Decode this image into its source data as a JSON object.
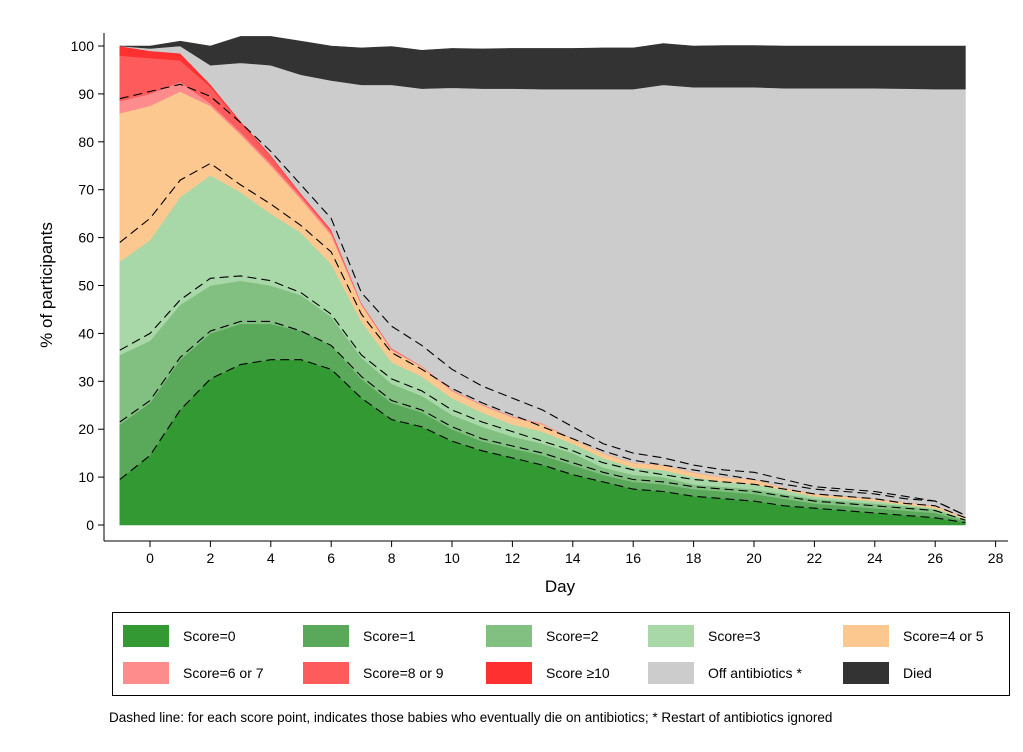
{
  "chart_data": {
    "type": "area",
    "stacked": true,
    "xlabel": "Day",
    "ylabel": "% of participants",
    "xlim": [
      -2,
      28
    ],
    "ylim": [
      -2,
      100
    ],
    "xticks": [
      0,
      2,
      4,
      6,
      8,
      10,
      12,
      14,
      16,
      18,
      20,
      22,
      24,
      26,
      28
    ],
    "yticks": [
      0,
      10,
      20,
      30,
      40,
      50,
      60,
      70,
      80,
      90,
      100
    ],
    "x": [
      -1,
      0,
      1,
      2,
      3,
      4,
      5,
      6,
      7,
      8,
      9,
      10,
      11,
      12,
      13,
      14,
      15,
      16,
      17,
      18,
      19,
      20,
      21,
      22,
      23,
      24,
      25,
      26,
      27
    ],
    "series": [
      {
        "name": "Score=0",
        "color": "#339933",
        "values": [
          9.5,
          14.5,
          24,
          30.5,
          33.5,
          34.5,
          34.5,
          32.5,
          26.5,
          22,
          20.5,
          17.5,
          15.5,
          14,
          12.5,
          10.5,
          9,
          7.5,
          7,
          6,
          5.5,
          5,
          4,
          3.5,
          3,
          2.5,
          2,
          1.5,
          0.5
        ]
      },
      {
        "name": "Score=1",
        "color": "#5aa85a",
        "values": [
          11.5,
          11,
          10.5,
          9.5,
          8.5,
          7.5,
          6,
          5,
          4,
          3.5,
          3,
          2.5,
          2,
          2,
          2,
          2,
          1.5,
          1.5,
          1.5,
          1.5,
          1.5,
          1.5,
          1.5,
          1,
          1,
          1,
          1,
          1,
          0.3
        ]
      },
      {
        "name": "Score=2",
        "color": "#82c082",
        "values": [
          14.5,
          13,
          11.5,
          10,
          9,
          8,
          7.5,
          6,
          4.5,
          4,
          3.5,
          3,
          3,
          2.5,
          2.5,
          2.5,
          1.5,
          1.5,
          1.5,
          1,
          1,
          1,
          1,
          1,
          1,
          1,
          1,
          0.8,
          0.3
        ]
      },
      {
        "name": "Score=3",
        "color": "#a8d8a8",
        "values": [
          19.5,
          21,
          22.5,
          23,
          18.5,
          15,
          13,
          11,
          7.5,
          4.5,
          4,
          3.5,
          3,
          2.5,
          2.5,
          2,
          2,
          1.5,
          1.5,
          1.5,
          1,
          1,
          0.8,
          0.5,
          0.5,
          0.5,
          0.3,
          0.2,
          0.2
        ]
      },
      {
        "name": "Score=4 or 5",
        "color": "#fdc890",
        "values": [
          31,
          28,
          22,
          14.5,
          12,
          10,
          7,
          6,
          3.5,
          2.5,
          2,
          1.5,
          1.5,
          1.5,
          1.5,
          1,
          1,
          1,
          1,
          1,
          1,
          1,
          0.5,
          0.5,
          0.5,
          0.5,
          0.5,
          0.5,
          0.3
        ]
      },
      {
        "name": "Score=6 or 7",
        "color": "#fe8c8c",
        "values": [
          2.5,
          2.5,
          2,
          0.5,
          0.5,
          0.5,
          0.5,
          0.5,
          0.2,
          0.2,
          0.2,
          0.2,
          0.2,
          0.2,
          0.2,
          0,
          0,
          0,
          0,
          0,
          0,
          0,
          0,
          0,
          0,
          0,
          0,
          0,
          0
        ]
      },
      {
        "name": "Score=8 or 9",
        "color": "#fe5c5c",
        "values": [
          9.5,
          7.5,
          4.5,
          3.5,
          2,
          1.5,
          0.5,
          0.5,
          0.2,
          0.2,
          0,
          0,
          0,
          0,
          0,
          0,
          0,
          0,
          0,
          0,
          0,
          0,
          0,
          0,
          0,
          0,
          0,
          0,
          0
        ]
      },
      {
        "name": "Score ≥10",
        "color": "#fe3030",
        "values": [
          2,
          1.5,
          1.5,
          0.5,
          0.3,
          0.2,
          0.2,
          0.2,
          0,
          0,
          0,
          0,
          0,
          0,
          0,
          0,
          0,
          0,
          0,
          0,
          0,
          0,
          0,
          0,
          0,
          0,
          0,
          0,
          0
        ]
      },
      {
        "name": "Off antibiotics *",
        "color": "#cccccc",
        "values": [
          0,
          0.5,
          1.5,
          4,
          12.2,
          18.8,
          24.8,
          31.1,
          45.5,
          55,
          57.9,
          63.1,
          65.9,
          68.4,
          69.8,
          73,
          76,
          78,
          79.4,
          80.4,
          81.4,
          81.9,
          83.4,
          84.7,
          85.2,
          85.7,
          86.3,
          87,
          89.4
        ]
      },
      {
        "name": "Died",
        "color": "#333333",
        "values": [
          0,
          0.5,
          1,
          4,
          5.5,
          6,
          7,
          7.2,
          7.7,
          8,
          8,
          8.2,
          8.3,
          8.4,
          8.5,
          8.5,
          8.6,
          8.6,
          8.6,
          8.6,
          8.7,
          8.7,
          8.8,
          8.8,
          8.8,
          8.8,
          8.9,
          9,
          9
        ]
      }
    ],
    "dashed_lines": [
      [
        9.5,
        14.5,
        24,
        30.5,
        33.5,
        34.5,
        34.5,
        32.5,
        26.5,
        22,
        20.5,
        17.5,
        15.5,
        14,
        12.5,
        10.5,
        9,
        7.5,
        7,
        6,
        5.5,
        5,
        4,
        3.5,
        3,
        2.5,
        2,
        1.5,
        0.5
      ],
      [
        21.5,
        26,
        35,
        40.5,
        42.5,
        42.5,
        40.5,
        37.5,
        31,
        26,
        24,
        20.5,
        18,
        16.5,
        15,
        13,
        11,
        9.5,
        9,
        8,
        7.5,
        7,
        6,
        5,
        4.5,
        4,
        3.5,
        3,
        1
      ],
      [
        36.5,
        40,
        47,
        51.5,
        52,
        51,
        48.5,
        44,
        35.5,
        30.5,
        28,
        24,
        21.5,
        19.5,
        17.5,
        15.5,
        13,
        11.5,
        10.5,
        9.5,
        9,
        8.5,
        7.5,
        6.5,
        6,
        5.5,
        4.5,
        4,
        1.5
      ],
      [
        59,
        64,
        72,
        75.5,
        71,
        67,
        62.5,
        57,
        44,
        36,
        32.5,
        28.5,
        25.5,
        23,
        20.5,
        18,
        15.5,
        13.5,
        12.5,
        11.5,
        10.5,
        9.5,
        8.5,
        7.5,
        7,
        6.5,
        5.5,
        5,
        2
      ],
      [
        89,
        90.5,
        92,
        89.5,
        84,
        78,
        71,
        64,
        48.5,
        41.5,
        37.5,
        32.5,
        29,
        26.5,
        24,
        20.5,
        17,
        15,
        14,
        12.5,
        11.5,
        11,
        9.5,
        8,
        7.5,
        7,
        6,
        5,
        2
      ]
    ]
  },
  "legend": [
    {
      "label": "Score=0",
      "color": "#339933"
    },
    {
      "label": "Score=1",
      "color": "#5aa85a"
    },
    {
      "label": "Score=2",
      "color": "#82c082"
    },
    {
      "label": "Score=3",
      "color": "#a8d8a8"
    },
    {
      "label": "Score=4 or 5",
      "color": "#fdc890"
    },
    {
      "label": "Score=6 or 7",
      "color": "#fe8c8c"
    },
    {
      "label": "Score=8 or 9",
      "color": "#fe5c5c"
    },
    {
      "label": "Score ≥10",
      "color": "#fe3030"
    },
    {
      "label": "Off antibiotics *",
      "color": "#cccccc"
    },
    {
      "label": "Died",
      "color": "#333333"
    }
  ],
  "footnote": "Dashed line: for each score point, indicates those babies who eventually die on antibiotics; * Restart of antibiotics ignored"
}
